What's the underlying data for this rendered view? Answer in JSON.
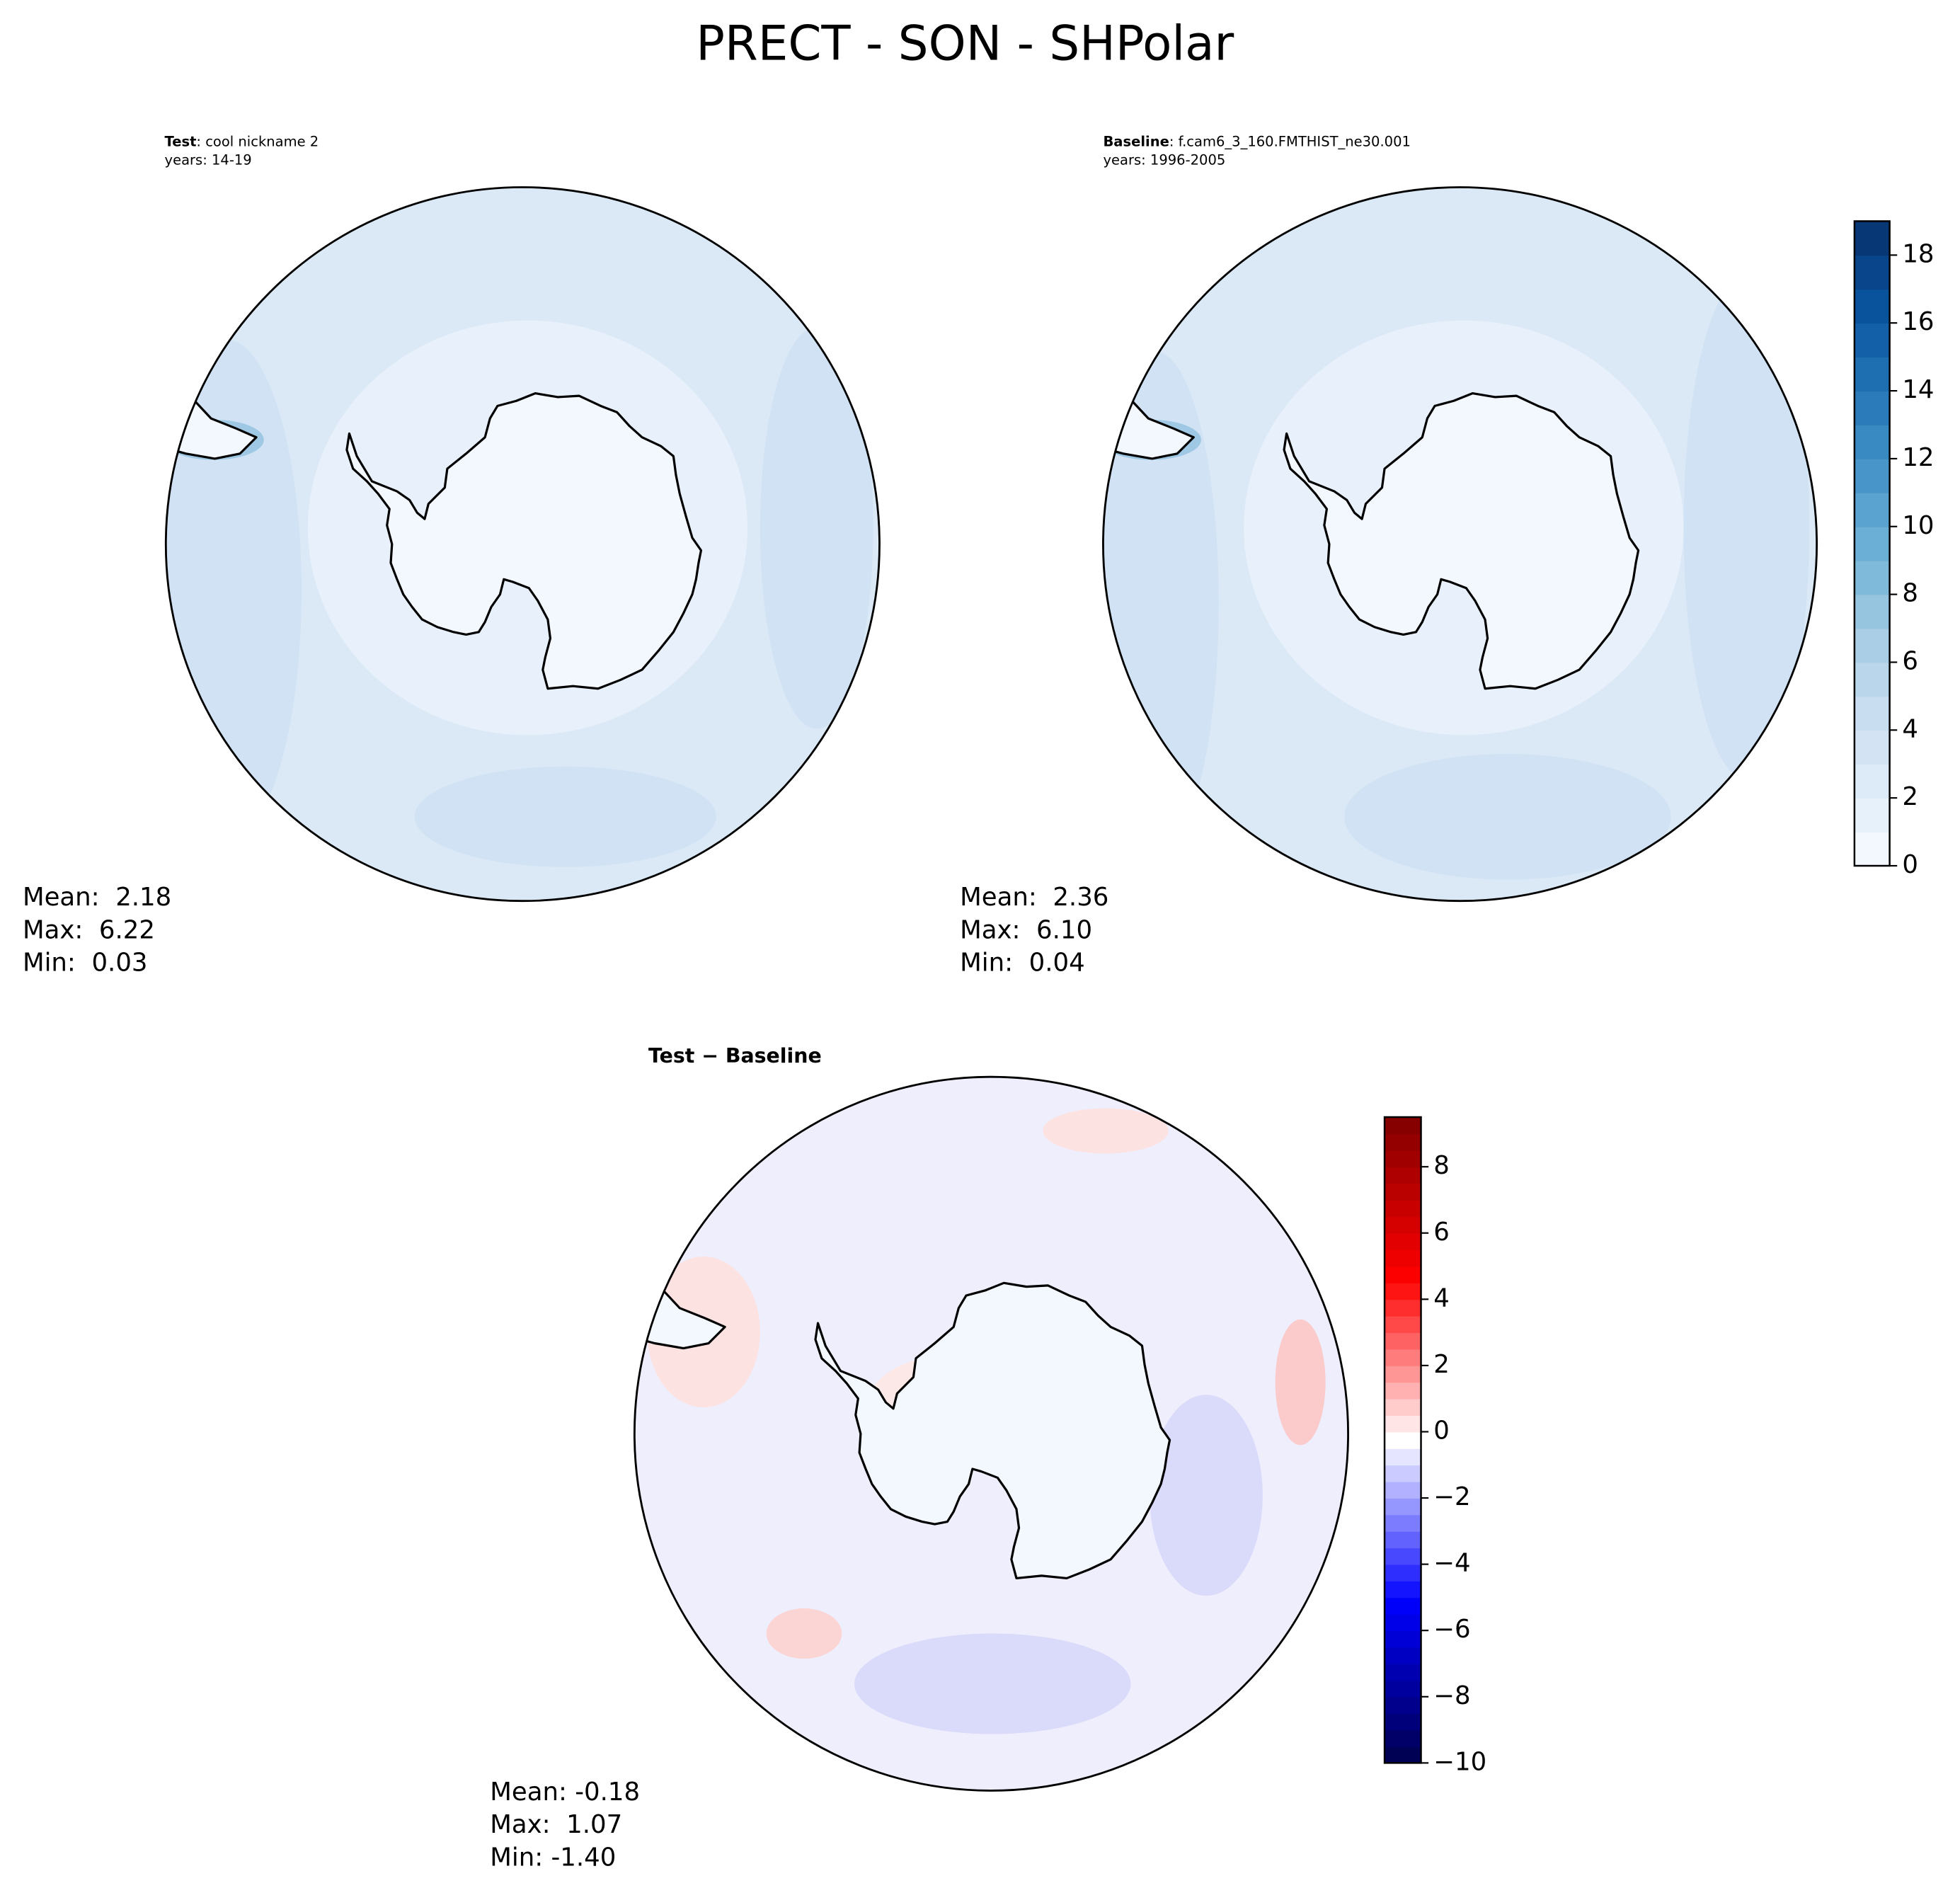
{
  "title": "PRECT - SON - SHPolar",
  "panels": [
    {
      "case_label": "Test",
      "case_name": ": cool nickname 2",
      "years": "years: 14-19",
      "stats": [
        "Mean:  2.18",
        "Max:  6.22",
        "Min:  0.03"
      ]
    },
    {
      "case_label": "Baseline",
      "case_name": ": f.cam6_3_160.FMTHIST_ne30.001",
      "years": "years: 1996-2005",
      "stats": [
        "Mean:  2.36",
        "Max:  6.10",
        "Min:  0.04"
      ]
    },
    {
      "case_label": "Test − Baseline",
      "stats": [
        "Mean: -0.18",
        "Max:  1.07",
        "Min: -1.40"
      ]
    }
  ],
  "colorbars": [
    {
      "colormap": "Blues",
      "clim": [
        0,
        19
      ],
      "ticks": [
        0,
        2,
        4,
        6,
        8,
        10,
        12,
        14,
        16,
        18
      ]
    },
    {
      "colormap": "seismic",
      "clim": [
        -10,
        9.5
      ],
      "ticks": [
        {
          "value": -10,
          "label": "−10"
        },
        {
          "value": -8,
          "label": "−8"
        },
        {
          "value": -6,
          "label": "−6"
        },
        {
          "value": -4,
          "label": "−4"
        },
        {
          "value": -2,
          "label": "−2"
        },
        0,
        2,
        4,
        6,
        8
      ]
    }
  ]
}
